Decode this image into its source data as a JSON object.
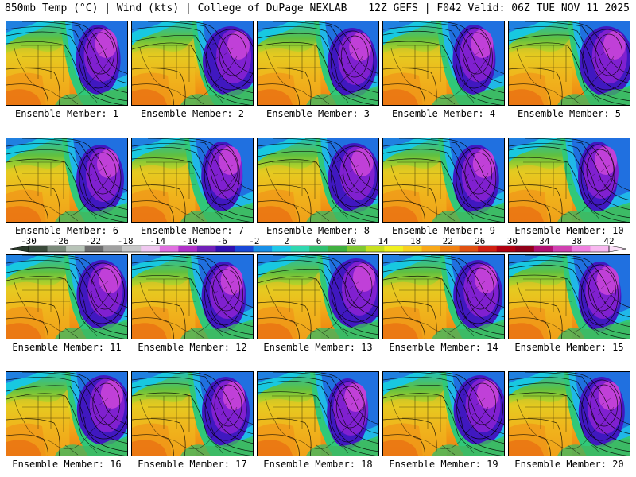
{
  "header": {
    "left": "850mb Temp (°C) | Wind (kts) | College of DuPage NEXLAB",
    "right": "12Z GEFS | F042 Valid: 06Z TUE NOV 11 2025"
  },
  "panels": [
    {
      "label": "Ensemble Member: 1"
    },
    {
      "label": "Ensemble Member: 2"
    },
    {
      "label": "Ensemble Member: 3"
    },
    {
      "label": "Ensemble Member: 4"
    },
    {
      "label": "Ensemble Member: 5"
    },
    {
      "label": "Ensemble Member: 6"
    },
    {
      "label": "Ensemble Member: 7"
    },
    {
      "label": "Ensemble Member: 8"
    },
    {
      "label": "Ensemble Member: 9"
    },
    {
      "label": "Ensemble Member: 10"
    },
    {
      "label": "Ensemble Member: 11"
    },
    {
      "label": "Ensemble Member: 12"
    },
    {
      "label": "Ensemble Member: 13"
    },
    {
      "label": "Ensemble Member: 14"
    },
    {
      "label": "Ensemble Member: 15"
    },
    {
      "label": "Ensemble Member: 16"
    },
    {
      "label": "Ensemble Member: 17"
    },
    {
      "label": "Ensemble Member: 18"
    },
    {
      "label": "Ensemble Member: 19"
    },
    {
      "label": "Ensemble Member: 20"
    }
  ],
  "colorbar": {
    "ticks": [
      "-30",
      "-26",
      "-22",
      "-18",
      "-14",
      "-10",
      "-6",
      "-2",
      "2",
      "6",
      "10",
      "14",
      "18",
      "22",
      "26",
      "30",
      "34",
      "38",
      "42"
    ],
    "colors": [
      "#3a4a3a",
      "#7a8a7a",
      "#b8c4b8",
      "#6c6c6c",
      "#a0a0a0",
      "#c8c8c8",
      "#f0c8f0",
      "#e070e0",
      "#b030c8",
      "#7020b8",
      "#3010b0",
      "#1848d8",
      "#1890e8",
      "#20c8e8",
      "#30d8b0",
      "#30c070",
      "#40b040",
      "#80c830",
      "#c8e020",
      "#f0f020",
      "#f8d020",
      "#f8a818",
      "#f08010",
      "#e05010",
      "#d02010",
      "#b00010",
      "#900018",
      "#b01070",
      "#d040b0",
      "#f080e0",
      "#f8b8f0"
    ]
  }
}
